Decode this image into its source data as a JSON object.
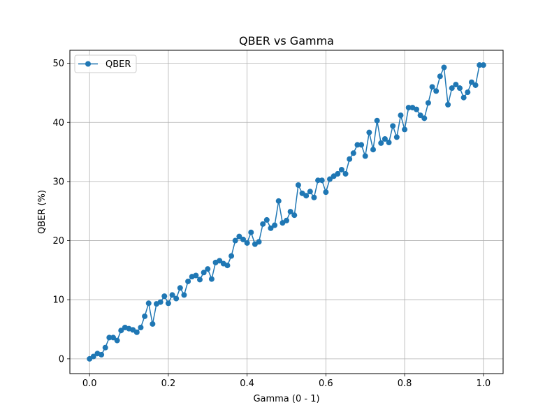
{
  "chart_data": {
    "type": "line",
    "title": "QBER vs Gamma",
    "xlabel": "Gamma (0 - 1)",
    "ylabel": "QBER (%)",
    "xlim": [
      -0.05,
      1.05
    ],
    "ylim": [
      -2.5,
      52.2
    ],
    "xticks": [
      0.0,
      0.2,
      0.4,
      0.6,
      0.8,
      1.0
    ],
    "xtick_labels": [
      "0.0",
      "0.2",
      "0.4",
      "0.6",
      "0.8",
      "1.0"
    ],
    "yticks": [
      0,
      10,
      20,
      30,
      40,
      50
    ],
    "ytick_labels": [
      "0",
      "10",
      "20",
      "30",
      "40",
      "50"
    ],
    "grid": true,
    "legend_position": "top-left",
    "color": "#1f77b4",
    "series": [
      {
        "name": "QBER",
        "x": [
          0.0,
          0.01,
          0.02,
          0.03,
          0.04,
          0.05,
          0.06,
          0.07,
          0.08,
          0.09,
          0.1,
          0.11,
          0.12,
          0.13,
          0.14,
          0.15,
          0.16,
          0.17,
          0.18,
          0.19,
          0.2,
          0.21,
          0.22,
          0.23,
          0.24,
          0.25,
          0.26,
          0.27,
          0.28,
          0.29,
          0.3,
          0.31,
          0.32,
          0.33,
          0.34,
          0.35,
          0.36,
          0.37,
          0.38,
          0.39,
          0.4,
          0.41,
          0.42,
          0.43,
          0.44,
          0.45,
          0.46,
          0.47,
          0.48,
          0.49,
          0.5,
          0.51,
          0.52,
          0.53,
          0.54,
          0.55,
          0.56,
          0.57,
          0.58,
          0.59,
          0.6,
          0.61,
          0.62,
          0.63,
          0.64,
          0.65,
          0.66,
          0.67,
          0.68,
          0.69,
          0.7,
          0.71,
          0.72,
          0.73,
          0.74,
          0.75,
          0.76,
          0.77,
          0.78,
          0.79,
          0.8,
          0.81,
          0.82,
          0.83,
          0.84,
          0.85,
          0.86,
          0.87,
          0.88,
          0.89,
          0.9,
          0.91,
          0.92,
          0.93,
          0.94,
          0.95,
          0.96,
          0.97,
          0.98,
          0.99,
          1.0
        ],
        "values": [
          0.0,
          0.4,
          0.9,
          0.7,
          1.9,
          3.6,
          3.6,
          3.1,
          4.8,
          5.3,
          5.1,
          4.9,
          4.5,
          5.3,
          7.2,
          9.4,
          5.9,
          9.3,
          9.6,
          10.6,
          9.4,
          10.8,
          10.2,
          12.0,
          10.8,
          13.1,
          13.9,
          14.1,
          13.4,
          14.6,
          15.2,
          13.5,
          16.3,
          16.6,
          16.1,
          15.8,
          17.4,
          20.0,
          20.7,
          20.2,
          19.6,
          21.4,
          19.4,
          19.8,
          22.8,
          23.5,
          22.1,
          22.6,
          26.7,
          23.0,
          23.4,
          24.9,
          24.3,
          29.4,
          28.0,
          27.6,
          28.3,
          27.3,
          30.2,
          30.2,
          28.2,
          30.4,
          30.9,
          31.3,
          32.0,
          31.3,
          33.8,
          34.8,
          36.2,
          36.2,
          34.3,
          38.3,
          35.4,
          40.3,
          36.5,
          37.2,
          36.6,
          39.4,
          37.5,
          41.2,
          38.8,
          42.5,
          42.5,
          42.2,
          41.2,
          40.7,
          43.3,
          46.0,
          45.3,
          47.8,
          49.3,
          43.0,
          45.8,
          46.4,
          45.8,
          44.2,
          45.1,
          46.8,
          46.3,
          49.7,
          49.7
        ]
      }
    ]
  }
}
